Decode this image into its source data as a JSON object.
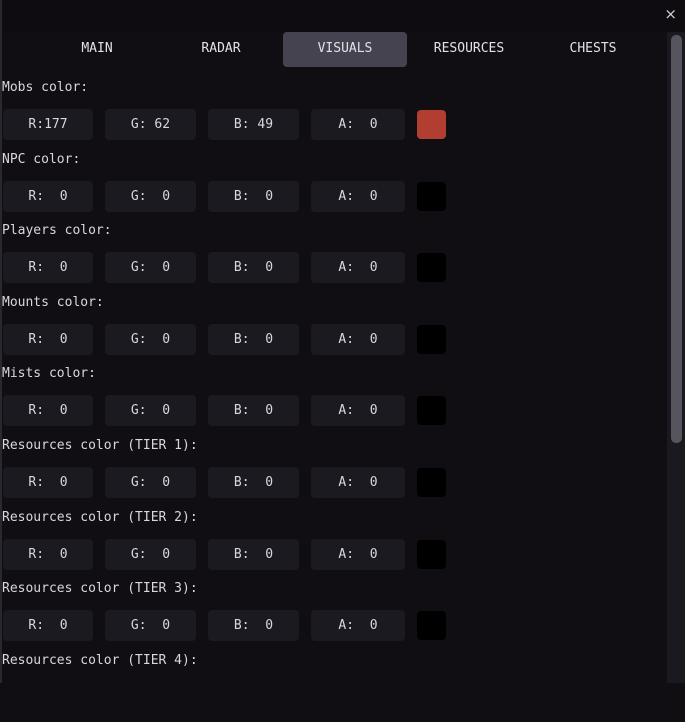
{
  "window": {
    "close_icon": "close-icon",
    "close_glyph": "×"
  },
  "tabs": [
    {
      "label": "MAIN",
      "active": false
    },
    {
      "label": "RADAR",
      "active": false
    },
    {
      "label": "VISUALS",
      "active": true
    },
    {
      "label": "RESOURCES",
      "active": false
    },
    {
      "label": "CHESTS",
      "active": false
    }
  ],
  "sections": [
    {
      "label": "Mobs color:",
      "r": "R:177",
      "g": "G: 62",
      "b": "B: 49",
      "a": "A:  0",
      "swatch": "#b13e31"
    },
    {
      "label": "NPC color:",
      "r": "R:  0",
      "g": "G:  0",
      "b": "B:  0",
      "a": "A:  0",
      "swatch": "#000000"
    },
    {
      "label": "Players color:",
      "r": "R:  0",
      "g": "G:  0",
      "b": "B:  0",
      "a": "A:  0",
      "swatch": "#000000"
    },
    {
      "label": "Mounts color:",
      "r": "R:  0",
      "g": "G:  0",
      "b": "B:  0",
      "a": "A:  0",
      "swatch": "#000000"
    },
    {
      "label": "Mists color:",
      "r": "R:  0",
      "g": "G:  0",
      "b": "B:  0",
      "a": "A:  0",
      "swatch": "#000000"
    },
    {
      "label": "Resources color (TIER 1):",
      "r": "R:  0",
      "g": "G:  0",
      "b": "B:  0",
      "a": "A:  0",
      "swatch": "#000000"
    },
    {
      "label": "Resources color (TIER 2):",
      "r": "R:  0",
      "g": "G:  0",
      "b": "B:  0",
      "a": "A:  0",
      "swatch": "#000000"
    },
    {
      "label": "Resources color (TIER 3):",
      "r": "R:  0",
      "g": "G:  0",
      "b": "B:  0",
      "a": "A:  0",
      "swatch": "#000000"
    },
    {
      "label": "Resources color (TIER 4):"
    }
  ]
}
